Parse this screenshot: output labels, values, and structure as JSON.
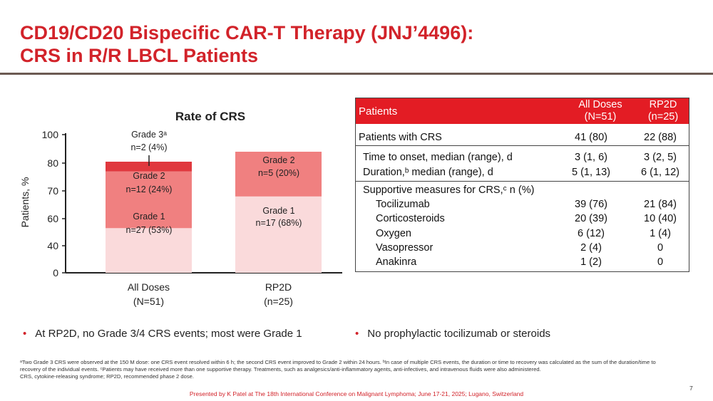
{
  "title": {
    "line1": "CD19/CD20 Bispecific CAR-T Therapy (JNJ’4496):",
    "line2": "CRS in R/R LBCL Patients"
  },
  "colors": {
    "accent": "#d2232a",
    "grade1": "#fadadb",
    "grade2": "#f08080",
    "grade3": "#e0383e"
  },
  "chart_data": {
    "type": "bar",
    "title": "Rate of CRS",
    "ylabel": "Patients, %",
    "xlabel": "",
    "ylim": [
      0,
      100
    ],
    "yticks": [
      "0",
      "40",
      "60",
      "70",
      "80",
      "100"
    ],
    "categories": [
      "All Doses",
      "RP2D"
    ],
    "category_sublabels": [
      "(N=51)",
      "(n=25)"
    ],
    "series": [
      {
        "name": "Grade 1",
        "values": [
          53,
          68
        ],
        "labels": [
          [
            "Grade 1",
            "n=27 (53%)"
          ],
          [
            "Grade 1",
            "n=17 (68%)"
          ]
        ]
      },
      {
        "name": "Grade 2",
        "values": [
          24,
          20
        ],
        "labels": [
          [
            "Grade 2",
            "n=12 (24%)"
          ],
          [
            "Grade 2",
            "n=5 (20%)"
          ]
        ]
      },
      {
        "name": "Grade 3",
        "values": [
          4,
          0
        ],
        "labels": [
          [
            "Grade 3ᵃ",
            "n=2 (4%)"
          ],
          []
        ]
      }
    ]
  },
  "table": {
    "header": {
      "col0": "Patients",
      "col1_line1": "All Doses",
      "col1_line2": "(N=51)",
      "col2_line1": "RP2D",
      "col2_line2": "(n=25)"
    },
    "rows": [
      {
        "label": "Patients with CRS",
        "v1": "41 (80)",
        "v2": "22 (88)"
      },
      {
        "label": "Time to onset, median (range), d",
        "v1": "3 (1, 6)",
        "v2": "3 (2, 5)"
      },
      {
        "label": "Duration,ᵇ median (range), d",
        "v1": "5 (1, 13)",
        "v2": "6 (1, 12)"
      },
      {
        "label": "Supportive measures for CRS,ᶜ n (%)",
        "v1": "",
        "v2": ""
      },
      {
        "label": "Tocilizumab",
        "v1": "39 (76)",
        "v2": "21 (84)"
      },
      {
        "label": "Corticosteroids",
        "v1": "20 (39)",
        "v2": "10 (40)"
      },
      {
        "label": "Oxygen",
        "v1": "6 (12)",
        "v2": "1 (4)"
      },
      {
        "label": "Vasopressor",
        "v1": "2 (4)",
        "v2": "0"
      },
      {
        "label": "Anakinra",
        "v1": "1 (2)",
        "v2": "0"
      }
    ]
  },
  "bullets": [
    "At RP2D, no Grade 3/4 CRS events; most were Grade 1",
    "No prophylactic tocilizumab or steroids"
  ],
  "footnotes": {
    "line1": "ᵃTwo Grade 3 CRS were observed at the 150 M dose: one CRS event resolved within 6 h; the second CRS event improved to Grade 2 within 24 hours. ᵇIn case of multiple CRS events, the duration or time to recovery was calculated as the sum of the duration/time to recovery of the individual events. ᶜPatients may have received more than one supportive therapy. Treatments, such as analgesics/anti-inflammatory agents, anti-infectives, and intravenous fluids were also administered.",
    "line2": "CRS, cytokine-releasing syndrome; RP2D, recommended phase 2 dose."
  },
  "presented": "Presented by K Patel at The 18th International Conference on Malignant Lymphoma; June 17-21, 2025; Lugano, Switzerland",
  "page_number": "7"
}
